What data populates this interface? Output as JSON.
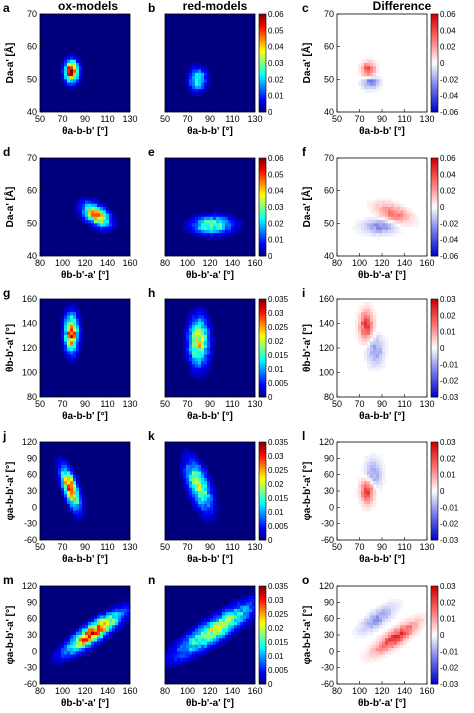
{
  "column_titles": [
    "ox-models",
    "red-models",
    "Difference"
  ],
  "colormaps": {
    "jet": [
      "#00007f",
      "#0000ff",
      "#007fff",
      "#00ffff",
      "#7fff7f",
      "#ffff00",
      "#ff7f00",
      "#ff0000",
      "#7f0000"
    ],
    "diverging": [
      "#0000c8",
      "#6e78e6",
      "#ffffff",
      "#ff6e6e",
      "#c80000"
    ]
  },
  "chart_data": [
    {
      "type": "heatmap",
      "rows": [
        {
          "xlim": [
            50,
            130
          ],
          "xticks": [
            "50",
            "70",
            "90",
            "110",
            "130"
          ],
          "xlabel": "θa-b-b' [°]",
          "ylim": [
            40,
            70
          ],
          "yticks": [
            "70",
            "60",
            "50",
            "40"
          ],
          "ylabel": "Da-a' [Å]",
          "shared_cb": {
            "ticks": [
              "0.06",
              "0.05",
              "0.04",
              "0.03",
              "0.02",
              "0.01",
              "0"
            ],
            "max": 0.06
          },
          "diff_cb": {
            "ticks": [
              "0.06",
              "0.04",
              "0.02",
              "0",
              "-0.02",
              "-0.04",
              "-0.06"
            ],
            "max": 0.06
          },
          "ox": {
            "letter": "a",
            "blobs": [
              {
                "cx": 78,
                "cy": 52.5,
                "sx": 4,
                "sy": 2.2,
                "amp": 0.06,
                "rot": 0
              }
            ]
          },
          "red": {
            "letter": "b",
            "blobs": [
              {
                "cx": 79,
                "cy": 50,
                "sx": 5,
                "sy": 2.2,
                "amp": 0.028,
                "rot": 0
              }
            ]
          },
          "diff": {
            "letter": "c",
            "blobs": [
              {
                "cx": 78,
                "cy": 53,
                "sx": 4,
                "sy": 1.5,
                "amp": 0.04,
                "rot": 0
              },
              {
                "cx": 80,
                "cy": 49,
                "sx": 5,
                "sy": 1.2,
                "amp": -0.03,
                "rot": 0
              }
            ]
          }
        },
        {
          "xlim": [
            80,
            160
          ],
          "xticks": [
            "80",
            "100",
            "120",
            "140",
            "160"
          ],
          "xlabel": "θb-b'-a' [°]",
          "ylim": [
            40,
            70
          ],
          "yticks": [
            "70",
            "60",
            "50",
            "40"
          ],
          "ylabel": "Da-a' [Å]",
          "shared_cb": {
            "ticks": [
              "0.06",
              "0.05",
              "0.04",
              "0.03",
              "0.02",
              "0.01",
              "0"
            ],
            "max": 0.06
          },
          "diff_cb": {
            "ticks": [
              "0.06",
              "0.04",
              "0.02",
              "0",
              "-0.02",
              "-0.04",
              "-0.06"
            ],
            "max": 0.06
          },
          "ox": {
            "letter": "d",
            "blobs": [
              {
                "cx": 130,
                "cy": 52.5,
                "sx": 8,
                "sy": 2,
                "amp": 0.045,
                "rot": -0.15
              }
            ]
          },
          "red": {
            "letter": "e",
            "blobs": [
              {
                "cx": 122,
                "cy": 49.5,
                "sx": 12,
                "sy": 1.8,
                "amp": 0.03,
                "rot": 0
              }
            ]
          },
          "diff": {
            "letter": "f",
            "blobs": [
              {
                "cx": 130,
                "cy": 53,
                "sx": 10,
                "sy": 1.8,
                "amp": 0.03,
                "rot": -0.1
              },
              {
                "cx": 118,
                "cy": 49,
                "sx": 10,
                "sy": 1.5,
                "amp": -0.025,
                "rot": 0
              }
            ]
          }
        },
        {
          "xlim": [
            50,
            130
          ],
          "xticks": [
            "50",
            "70",
            "90",
            "110",
            "130"
          ],
          "xlabel": "θa-b-b' [°]",
          "ylim": [
            80,
            160
          ],
          "yticks": [
            "160",
            "140",
            "120",
            "100",
            "80"
          ],
          "ylabel": "θb-b'-a' [°]",
          "shared_cb": {
            "ticks": [
              "0.035",
              "0.03",
              "0.025",
              "0.02",
              "0.015",
              "0.01",
              "0.005",
              "0"
            ],
            "max": 0.035
          },
          "diff_cb": {
            "ticks": [
              "0.03",
              "0.02",
              "0.01",
              "0",
              "-0.01",
              "-0.02",
              "-0.03"
            ],
            "max": 0.033
          },
          "ox": {
            "letter": "g",
            "blobs": [
              {
                "cx": 78,
                "cy": 132,
                "sx": 4,
                "sy": 10,
                "amp": 0.03,
                "rot": 0
              }
            ]
          },
          "red": {
            "letter": "h",
            "blobs": [
              {
                "cx": 80,
                "cy": 125,
                "sx": 6,
                "sy": 13,
                "amp": 0.022,
                "rot": 0
              }
            ]
          },
          "diff": {
            "letter": "i",
            "blobs": [
              {
                "cx": 76,
                "cy": 138,
                "sx": 4,
                "sy": 8,
                "amp": 0.025,
                "rot": 0
              },
              {
                "cx": 84,
                "cy": 118,
                "sx": 5,
                "sy": 8,
                "amp": -0.012,
                "rot": 0
              }
            ]
          }
        },
        {
          "xlim": [
            50,
            130
          ],
          "xticks": [
            "50",
            "70",
            "90",
            "110",
            "130"
          ],
          "xlabel": "θa-b-b' [°]",
          "ylim": [
            -60,
            120
          ],
          "yticks": [
            "120",
            "90",
            "60",
            "30",
            "0",
            "-30",
            "-60"
          ],
          "ylabel": "φa-b-b'-a' [°]",
          "shared_cb": {
            "ticks": [
              "0.035",
              "0.03",
              "0.025",
              "0.02",
              "0.015",
              "0.01",
              "0.005",
              "0"
            ],
            "max": 0.035
          },
          "diff_cb": {
            "ticks": [
              "0.03",
              "0.02",
              "0.01",
              "0",
              "-0.01",
              "-0.02",
              "-0.03"
            ],
            "max": 0.033
          },
          "ox": {
            "letter": "j",
            "blobs": [
              {
                "cx": 77,
                "cy": 35,
                "sx": 4,
                "sy": 25,
                "amp": 0.03,
                "rot": 0.15
              }
            ]
          },
          "red": {
            "letter": "k",
            "blobs": [
              {
                "cx": 80,
                "cy": 40,
                "sx": 6,
                "sy": 30,
                "amp": 0.02,
                "rot": 0.15
              }
            ]
          },
          "diff": {
            "letter": "l",
            "blobs": [
              {
                "cx": 77,
                "cy": 30,
                "sx": 4,
                "sy": 15,
                "amp": 0.025,
                "rot": 0
              },
              {
                "cx": 82,
                "cy": 60,
                "sx": 5,
                "sy": 18,
                "amp": -0.012,
                "rot": 0
              }
            ]
          }
        },
        {
          "xlim": [
            80,
            160
          ],
          "xticks": [
            "80",
            "100",
            "120",
            "140",
            "160"
          ],
          "xlabel": "θb-b'-a' [°]",
          "ylim": [
            -60,
            120
          ],
          "yticks": [
            "120",
            "90",
            "60",
            "30",
            "0",
            "-30",
            "-60"
          ],
          "ylabel": "φa-b-b'-a' [°]",
          "shared_cb": {
            "ticks": [
              "0.035",
              "0.03",
              "0.025",
              "0.02",
              "0.015",
              "0.01",
              "0.005",
              "0"
            ],
            "max": 0.035
          },
          "diff_cb": {
            "ticks": [
              "0.03",
              "0.02",
              "0.01",
              "0",
              "-0.01",
              "-0.02",
              "-0.03"
            ],
            "max": 0.033
          },
          "ox": {
            "letter": "m",
            "blobs": [
              {
                "cx": 128,
                "cy": 35,
                "sx": 7,
                "sy": 28,
                "amp": 0.03,
                "rot": -0.55
              }
            ]
          },
          "red": {
            "letter": "n",
            "blobs": [
              {
                "cx": 125,
                "cy": 40,
                "sx": 9,
                "sy": 38,
                "amp": 0.02,
                "rot": -0.6
              }
            ]
          },
          "diff": {
            "letter": "o",
            "blobs": [
              {
                "cx": 132,
                "cy": 25,
                "sx": 6,
                "sy": 22,
                "amp": 0.025,
                "rot": -0.55
              },
              {
                "cx": 116,
                "cy": 60,
                "sx": 6,
                "sy": 18,
                "amp": -0.012,
                "rot": -0.5
              }
            ]
          }
        }
      ]
    }
  ]
}
